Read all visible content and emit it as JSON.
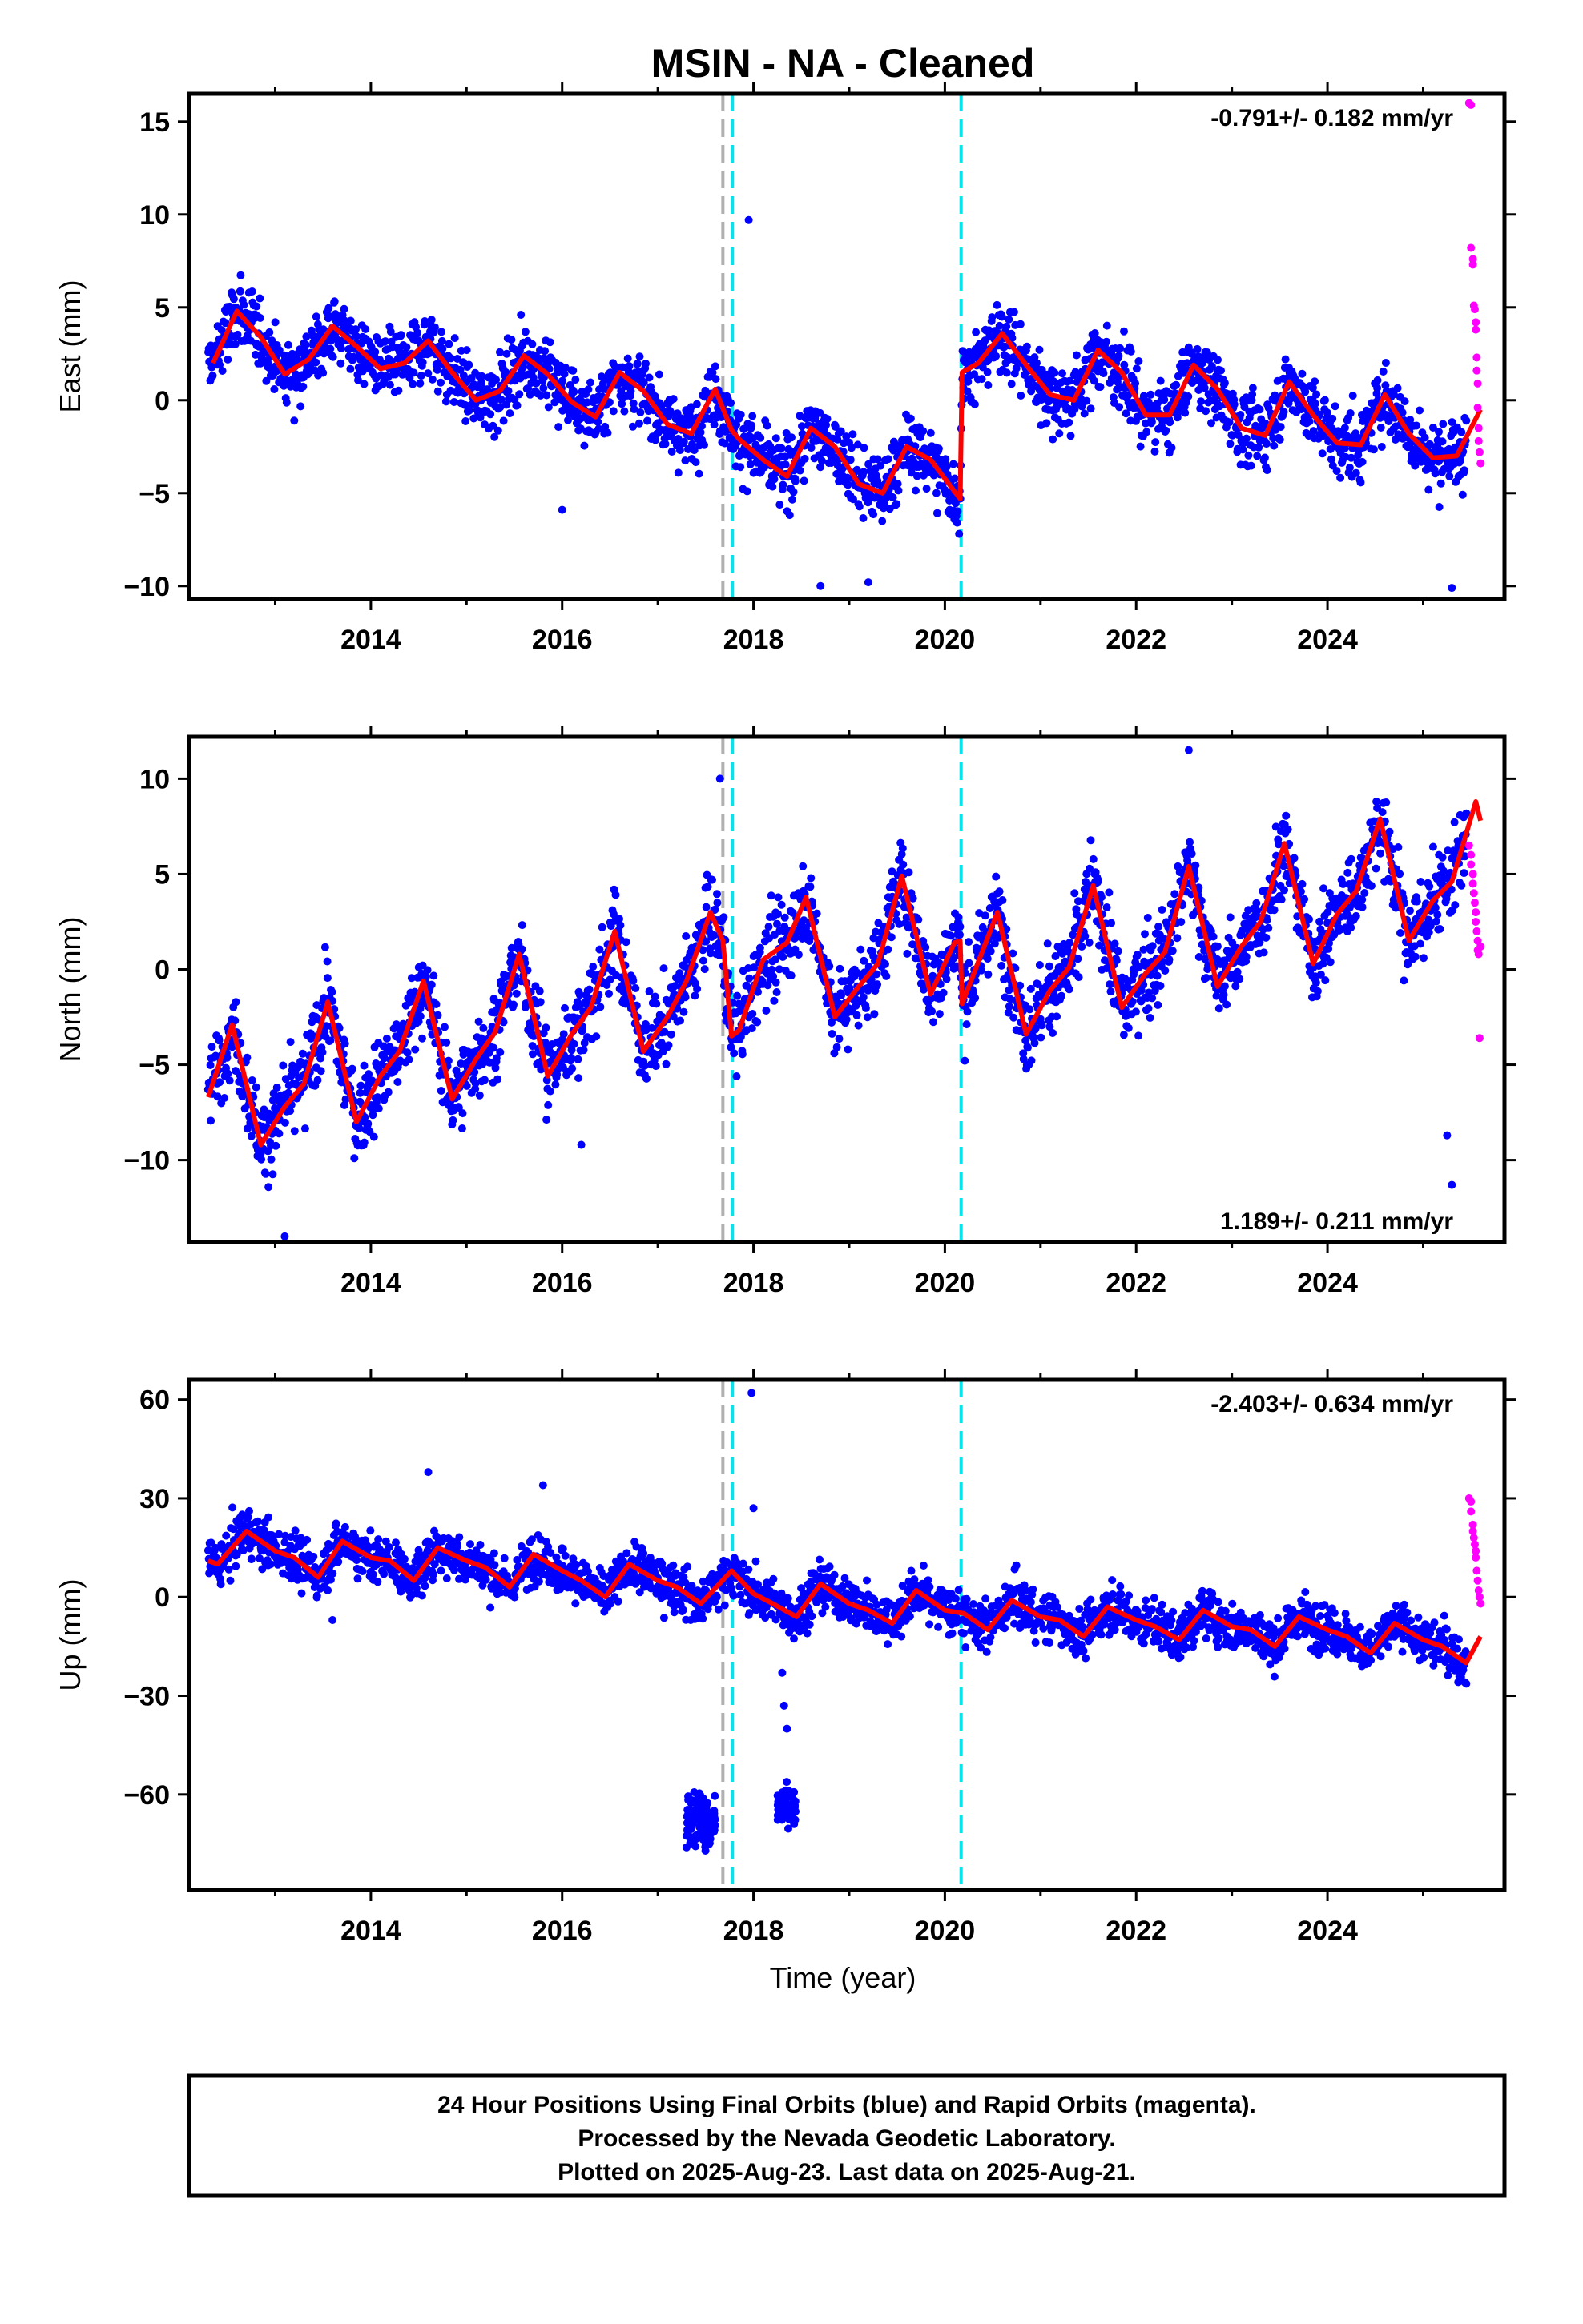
{
  "title": "MSIN  - NA - Cleaned",
  "xlabel": "Time (year)",
  "footer": {
    "line1": "24 Hour Positions Using Final Orbits (blue) and Rapid Orbits (magenta).",
    "line2": "Processed by the Nevada Geodetic Laboratory.",
    "line3": "Plotted on 2025-Aug-23. Last data on 2025-Aug-21."
  },
  "colors": {
    "final": "#0000ff",
    "rapid": "#ff00ff",
    "model": "#ff0000",
    "equipment_change": "#b0b0b0",
    "earthquake": "#00e5ee"
  },
  "chart_data": [
    {
      "type": "scatter",
      "component": "east",
      "ylabel": "East (mm)",
      "rate": "-0.791+/- 0.182 mm/yr",
      "rate_position": "top-right",
      "xlim": [
        2012.1,
        2025.85
      ],
      "ylim": [
        -10.7,
        16.5
      ],
      "xticks": [
        2014,
        2016,
        2018,
        2020,
        2022,
        2024
      ],
      "yticks": [
        15,
        10,
        5,
        0,
        -5,
        -10
      ],
      "ytick_labels": [
        "15",
        "10",
        "5",
        "0",
        "−5",
        "−10"
      ],
      "equipment_changes": [
        2017.68
      ],
      "earthquakes": [
        2017.78,
        2020.17
      ],
      "model_fit": {
        "x": [
          2012.35,
          2012.6,
          2012.85,
          2013.1,
          2013.35,
          2013.6,
          2013.85,
          2014.1,
          2014.35,
          2014.6,
          2014.85,
          2015.1,
          2015.35,
          2015.6,
          2015.85,
          2016.1,
          2016.35,
          2016.6,
          2016.85,
          2017.1,
          2017.35,
          2017.6,
          2017.77,
          2017.85,
          2018.1,
          2018.35,
          2018.6,
          2018.85,
          2019.1,
          2019.35,
          2019.6,
          2019.85,
          2020.1,
          2020.16,
          2020.18,
          2020.35,
          2020.6,
          2020.85,
          2021.1,
          2021.35,
          2021.6,
          2021.85,
          2022.1,
          2022.35,
          2022.6,
          2022.85,
          2023.1,
          2023.35,
          2023.6,
          2023.85,
          2024.1,
          2024.35,
          2024.6,
          2024.85,
          2025.1,
          2025.35,
          2025.6
        ],
        "y": [
          2.0,
          4.8,
          3.4,
          1.4,
          2.2,
          4.0,
          2.9,
          1.7,
          2.0,
          3.2,
          1.5,
          0.0,
          0.5,
          2.4,
          1.4,
          -0.1,
          -0.9,
          1.5,
          0.5,
          -1.3,
          -1.8,
          0.6,
          -1.6,
          -2.1,
          -3.2,
          -4.1,
          -1.5,
          -2.5,
          -4.5,
          -5.0,
          -2.5,
          -3.2,
          -4.9,
          -5.3,
          1.5,
          2.0,
          3.6,
          1.9,
          0.3,
          0.0,
          2.7,
          1.5,
          -0.8,
          -0.8,
          1.9,
          0.6,
          -1.5,
          -1.9,
          1.0,
          -0.8,
          -2.3,
          -2.4,
          0.3,
          -1.8,
          -3.1,
          -3.0,
          -0.5
        ]
      },
      "points": {
        "x_start": 2012.3,
        "x_end": 2025.45,
        "count": 2400,
        "noise_mm": 1.3,
        "scatter_note": "daily positions"
      },
      "outliers": {
        "x": [
          2017.95,
          2025.3,
          2016.0,
          2019.2,
          2018.7
        ],
        "y": [
          9.7,
          -10.1,
          -5.9,
          -9.8,
          -10.0
        ]
      },
      "rapid": {
        "x": [
          2025.48,
          2025.5,
          2025.5,
          2025.52,
          2025.52,
          2025.53,
          2025.54,
          2025.55,
          2025.55,
          2025.56,
          2025.56,
          2025.57,
          2025.57,
          2025.58,
          2025.58,
          2025.59,
          2025.6
        ],
        "y": [
          16.0,
          15.9,
          8.2,
          7.6,
          7.3,
          5.1,
          4.9,
          4.2,
          3.8,
          2.3,
          1.6,
          0.9,
          -0.4,
          -1.5,
          -2.2,
          -2.8,
          -3.4
        ]
      }
    },
    {
      "type": "scatter",
      "component": "north",
      "ylabel": "North (mm)",
      "rate": "1.189+/- 0.211 mm/yr",
      "rate_position": "bottom-right",
      "xlim": [
        2012.1,
        2025.85
      ],
      "ylim": [
        -14.3,
        12.2
      ],
      "xticks": [
        2014,
        2016,
        2018,
        2020,
        2022,
        2024
      ],
      "yticks": [
        10,
        5,
        0,
        -5,
        -10
      ],
      "ytick_labels": [
        "10",
        "5",
        "0",
        "−5",
        "−10"
      ],
      "equipment_changes": [
        2017.68
      ],
      "earthquakes": [
        2017.78,
        2020.17
      ],
      "model_fit": {
        "x": [
          2012.3,
          2012.55,
          2012.85,
          2013.1,
          2013.3,
          2013.55,
          2013.85,
          2014.1,
          2014.3,
          2014.55,
          2014.85,
          2015.1,
          2015.3,
          2015.55,
          2015.85,
          2016.1,
          2016.3,
          2016.55,
          2016.85,
          2017.1,
          2017.3,
          2017.55,
          2017.68,
          2017.77,
          2017.85,
          2018.1,
          2018.35,
          2018.55,
          2018.85,
          2019.1,
          2019.3,
          2019.55,
          2019.85,
          2020.1,
          2020.16,
          2020.18,
          2020.35,
          2020.55,
          2020.85,
          2021.1,
          2021.3,
          2021.55,
          2021.85,
          2022.1,
          2022.3,
          2022.55,
          2022.85,
          2023.1,
          2023.3,
          2023.55,
          2023.85,
          2024.1,
          2024.3,
          2024.55,
          2024.85,
          2025.1,
          2025.3,
          2025.55,
          2025.6
        ],
        "y": [
          -6.7,
          -2.9,
          -9.2,
          -7.2,
          -6.0,
          -1.7,
          -8.0,
          -5.6,
          -4.3,
          -0.6,
          -6.8,
          -4.7,
          -3.3,
          0.8,
          -5.6,
          -3.4,
          -2.0,
          2.0,
          -4.3,
          -2.5,
          -0.6,
          3.0,
          1.5,
          -3.5,
          -3.2,
          0.5,
          1.4,
          3.8,
          -2.5,
          -0.9,
          0.3,
          4.9,
          -1.3,
          1.4,
          1.5,
          -1.8,
          0.4,
          3.0,
          -3.4,
          -1.1,
          0.1,
          4.4,
          -2.0,
          -0.2,
          0.9,
          5.4,
          -0.9,
          1.2,
          2.5,
          6.6,
          0.3,
          2.9,
          4.1,
          7.9,
          1.5,
          3.6,
          4.6,
          8.8,
          7.8
        ]
      },
      "points": {
        "x_start": 2012.3,
        "x_end": 2025.45,
        "count": 2400,
        "noise_mm": 1.5,
        "scatter_note": "daily positions"
      },
      "outliers": {
        "x": [
          2017.65,
          2022.55,
          2025.3,
          2025.25,
          2016.2,
          2013.1
        ],
        "y": [
          10.0,
          11.5,
          -11.3,
          -8.7,
          -9.2,
          -14.0
        ]
      },
      "rapid": {
        "x": [
          2025.48,
          2025.5,
          2025.5,
          2025.52,
          2025.52,
          2025.53,
          2025.54,
          2025.55,
          2025.55,
          2025.56,
          2025.57,
          2025.57,
          2025.58,
          2025.59,
          2025.6
        ],
        "y": [
          6.5,
          6.0,
          5.5,
          5.0,
          4.5,
          4.0,
          3.5,
          3.0,
          2.5,
          2.0,
          1.5,
          1.0,
          0.8,
          -3.6,
          1.2
        ]
      }
    },
    {
      "type": "scatter",
      "component": "up",
      "ylabel": "Up (mm)",
      "rate": "-2.403+/- 0.634 mm/yr",
      "rate_position": "top-right",
      "xlim": [
        2012.1,
        2025.85
      ],
      "ylim": [
        -89,
        66
      ],
      "xticks": [
        2014,
        2016,
        2018,
        2020,
        2022,
        2024
      ],
      "yticks": [
        60,
        30,
        0,
        -30,
        -60
      ],
      "ytick_labels": [
        "60",
        "30",
        "0",
        "−30",
        "−60"
      ],
      "equipment_changes": [
        2017.68
      ],
      "earthquakes": [
        2017.78,
        2020.17
      ],
      "model_fit": {
        "x": [
          2012.3,
          2012.4,
          2012.7,
          2013.0,
          2013.2,
          2013.45,
          2013.7,
          2014.0,
          2014.2,
          2014.45,
          2014.7,
          2015.0,
          2015.2,
          2015.45,
          2015.7,
          2016.0,
          2016.2,
          2016.45,
          2016.7,
          2017.0,
          2017.2,
          2017.45,
          2017.77,
          2018.0,
          2018.2,
          2018.45,
          2018.7,
          2019.0,
          2019.2,
          2019.45,
          2019.7,
          2020.0,
          2020.2,
          2020.45,
          2020.7,
          2021.0,
          2021.2,
          2021.45,
          2021.7,
          2022.0,
          2022.2,
          2022.45,
          2022.7,
          2023.0,
          2023.2,
          2023.45,
          2023.7,
          2024.0,
          2024.2,
          2024.45,
          2024.7,
          2025.0,
          2025.2,
          2025.45,
          2025.6
        ],
        "y": [
          11,
          10,
          20,
          14,
          12,
          6,
          17,
          12,
          11,
          5,
          15,
          11,
          9,
          3,
          13,
          8,
          5,
          0,
          10,
          5,
          3,
          -2,
          8,
          1,
          -2,
          -6,
          4,
          -2,
          -4,
          -8,
          2,
          -4,
          -5,
          -10,
          -1,
          -6,
          -7,
          -12,
          -3,
          -7,
          -9,
          -13,
          -4,
          -9,
          -10,
          -15,
          -6,
          -10,
          -12,
          -17,
          -8,
          -13,
          -15,
          -20,
          -12
        ]
      },
      "points": {
        "x_start": 2012.3,
        "x_end": 2025.45,
        "count": 2400,
        "noise_mm": 5.0,
        "scatter_note": "daily positions"
      },
      "outliers": {
        "x": [
          2017.98,
          2018.0,
          2014.6,
          2015.8,
          2013.6,
          2018.3,
          2018.32,
          2018.35
        ],
        "y": [
          62,
          27,
          38,
          34,
          -7,
          -23,
          -33,
          -40
        ]
      },
      "cluster_low": [
        {
          "x_start": 2017.3,
          "x_end": 2017.6,
          "y_center": -68,
          "y_spread": 14,
          "count": 120
        },
        {
          "x_start": 2018.25,
          "x_end": 2018.45,
          "y_center": -64,
          "y_spread": 8,
          "count": 70
        }
      ],
      "rapid": {
        "x": [
          2025.48,
          2025.5,
          2025.5,
          2025.52,
          2025.52,
          2025.53,
          2025.54,
          2025.55,
          2025.55,
          2025.56,
          2025.57,
          2025.58,
          2025.59,
          2025.6
        ],
        "y": [
          30,
          29,
          26,
          22,
          20,
          18,
          16,
          14,
          12,
          8,
          5,
          2,
          0,
          -2
        ]
      }
    }
  ]
}
